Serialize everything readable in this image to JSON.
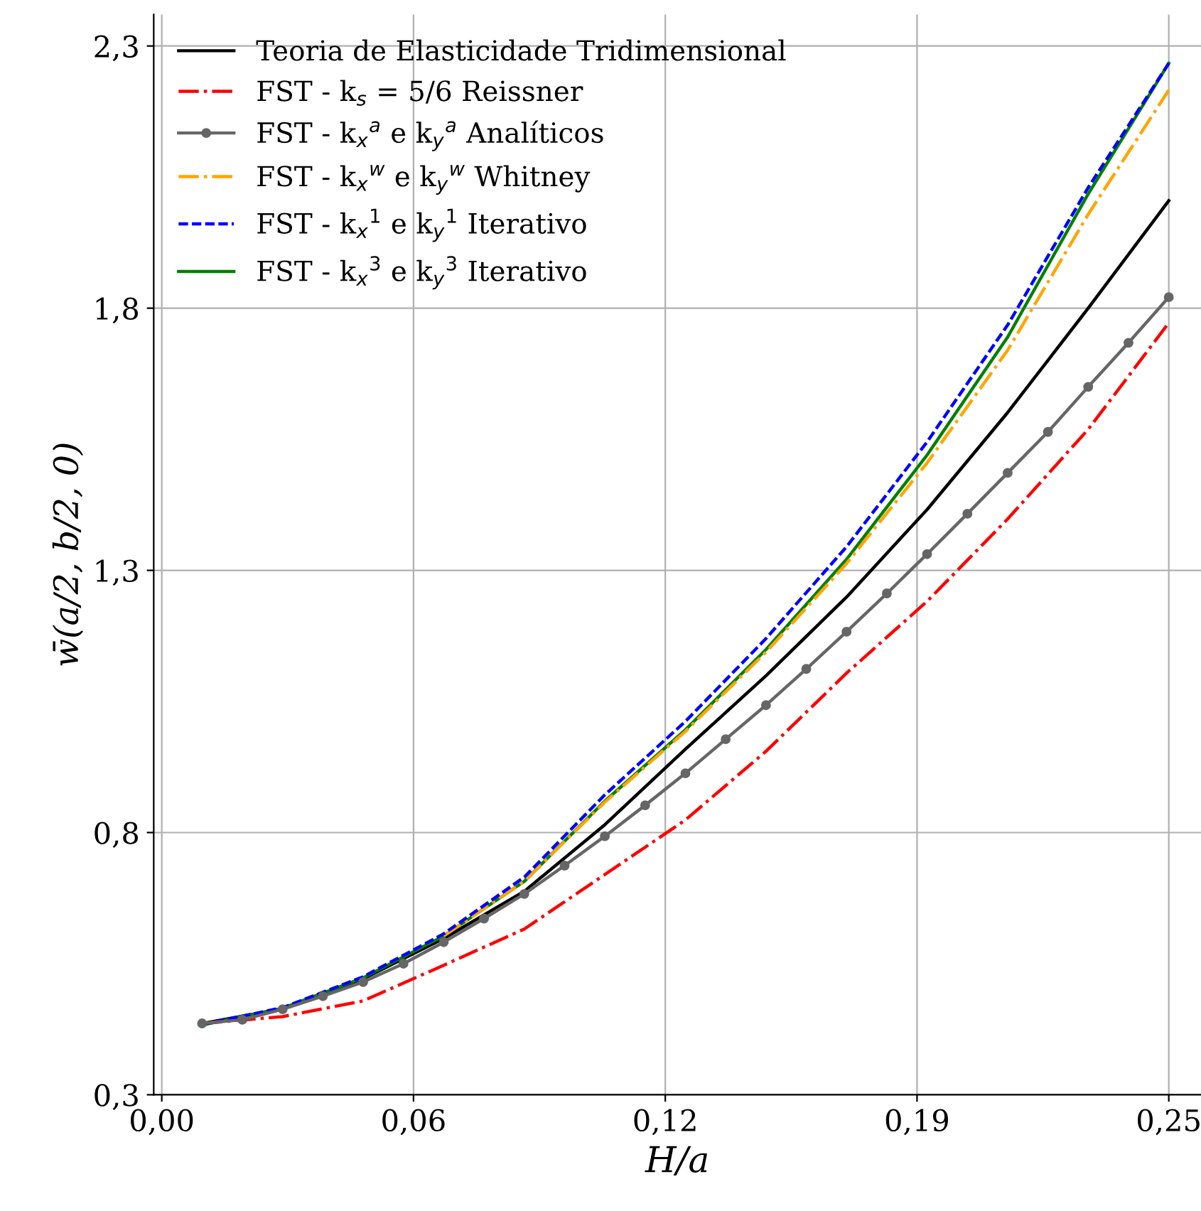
{
  "chart_data": {
    "type": "line",
    "xlabel": "H/a",
    "ylabel": "w̄(a/2, b/2, 0)",
    "xlim": [
      -0.002,
      0.258
    ],
    "ylim": [
      0.3,
      2.36
    ],
    "xticks": [
      {
        "value": 0,
        "label": "0,00"
      },
      {
        "value": 0.0625,
        "label": "0,06"
      },
      {
        "value": 0.125,
        "label": "0,12"
      },
      {
        "value": 0.1875,
        "label": "0,19"
      },
      {
        "value": 0.25,
        "label": "0,25"
      }
    ],
    "yticks": [
      {
        "value": 0.3,
        "label": "0,3"
      },
      {
        "value": 0.8,
        "label": "0,8"
      },
      {
        "value": 1.3,
        "label": "1,3"
      },
      {
        "value": 1.8,
        "label": "1,8"
      },
      {
        "value": 2.3,
        "label": "2,3"
      }
    ],
    "grid": true,
    "legend": "top left",
    "marker": "none",
    "x": [
      0.01,
      0.03,
      0.05,
      0.07,
      0.09,
      0.11,
      0.13,
      0.15,
      0.17,
      0.19,
      0.21,
      0.23,
      0.25
    ],
    "series": [
      {
        "name": "Teoria de Elasticidade Tridimensional",
        "color": "#000000",
        "line_style": "solid",
        "values": [
          0.436,
          0.464,
          0.521,
          0.598,
          0.688,
          0.815,
          0.959,
          1.099,
          1.249,
          1.416,
          1.601,
          1.8,
          2.005
        ]
      },
      {
        "name": "FST - k$_{s}$ = 5/6 Reissner",
        "color": "#ff0000",
        "line_style": "dashdot",
        "values": [
          0.436,
          0.449,
          0.479,
          0.547,
          0.616,
          0.72,
          0.824,
          0.955,
          1.104,
          1.241,
          1.398,
          1.569,
          1.772
        ]
      },
      {
        "name": "FST - k$_{x}$$^{a}$ e k$_{y}$$^{a}$ Analíticos",
        "color": "#666666",
        "line_style": "solid",
        "marker": "circle",
        "x": [
          0.01,
          0.02,
          0.03,
          0.04,
          0.05,
          0.06,
          0.07,
          0.08,
          0.09,
          0.1,
          0.11,
          0.12,
          0.13,
          0.14,
          0.15,
          0.16,
          0.17,
          0.18,
          0.19,
          0.2,
          0.21,
          0.22,
          0.23,
          0.24,
          0.25
        ],
        "values": [
          0.436,
          0.443,
          0.463,
          0.488,
          0.515,
          0.55,
          0.591,
          0.636,
          0.683,
          0.737,
          0.793,
          0.852,
          0.913,
          0.978,
          1.043,
          1.112,
          1.183,
          1.256,
          1.331,
          1.408,
          1.486,
          1.564,
          1.65,
          1.734,
          1.821
        ]
      },
      {
        "name": "FST - k$_{x}$$^{w}$ e k$_{y}$$^{w}$ Whitney",
        "color": "#ffa500",
        "line_style": "dashdot",
        "values": [
          null,
          null,
          null,
          0.603,
          0.707,
          0.858,
          0.993,
          1.144,
          1.313,
          1.505,
          1.72,
          1.979,
          2.216
        ]
      },
      {
        "name": "FST - k$_{x}$$^{1}$ e k$_{y}$$^{1}$ Iterativo",
        "color": "#0000ff",
        "line_style": "dashed",
        "values": [
          0.434,
          0.466,
          0.525,
          0.607,
          0.715,
          0.872,
          1.012,
          1.17,
          1.345,
          1.545,
          1.768,
          2.03,
          2.267
        ]
      },
      {
        "name": "FST - k$_{x}$$^{3}$ e k$_{y}$$^{3}$ Iterativo",
        "color": "#008000",
        "line_style": "solid",
        "values": [
          0.433,
          0.465,
          0.523,
          0.603,
          0.707,
          0.86,
          0.996,
          1.149,
          1.321,
          1.52,
          1.745,
          2.018,
          2.267
        ]
      }
    ]
  }
}
